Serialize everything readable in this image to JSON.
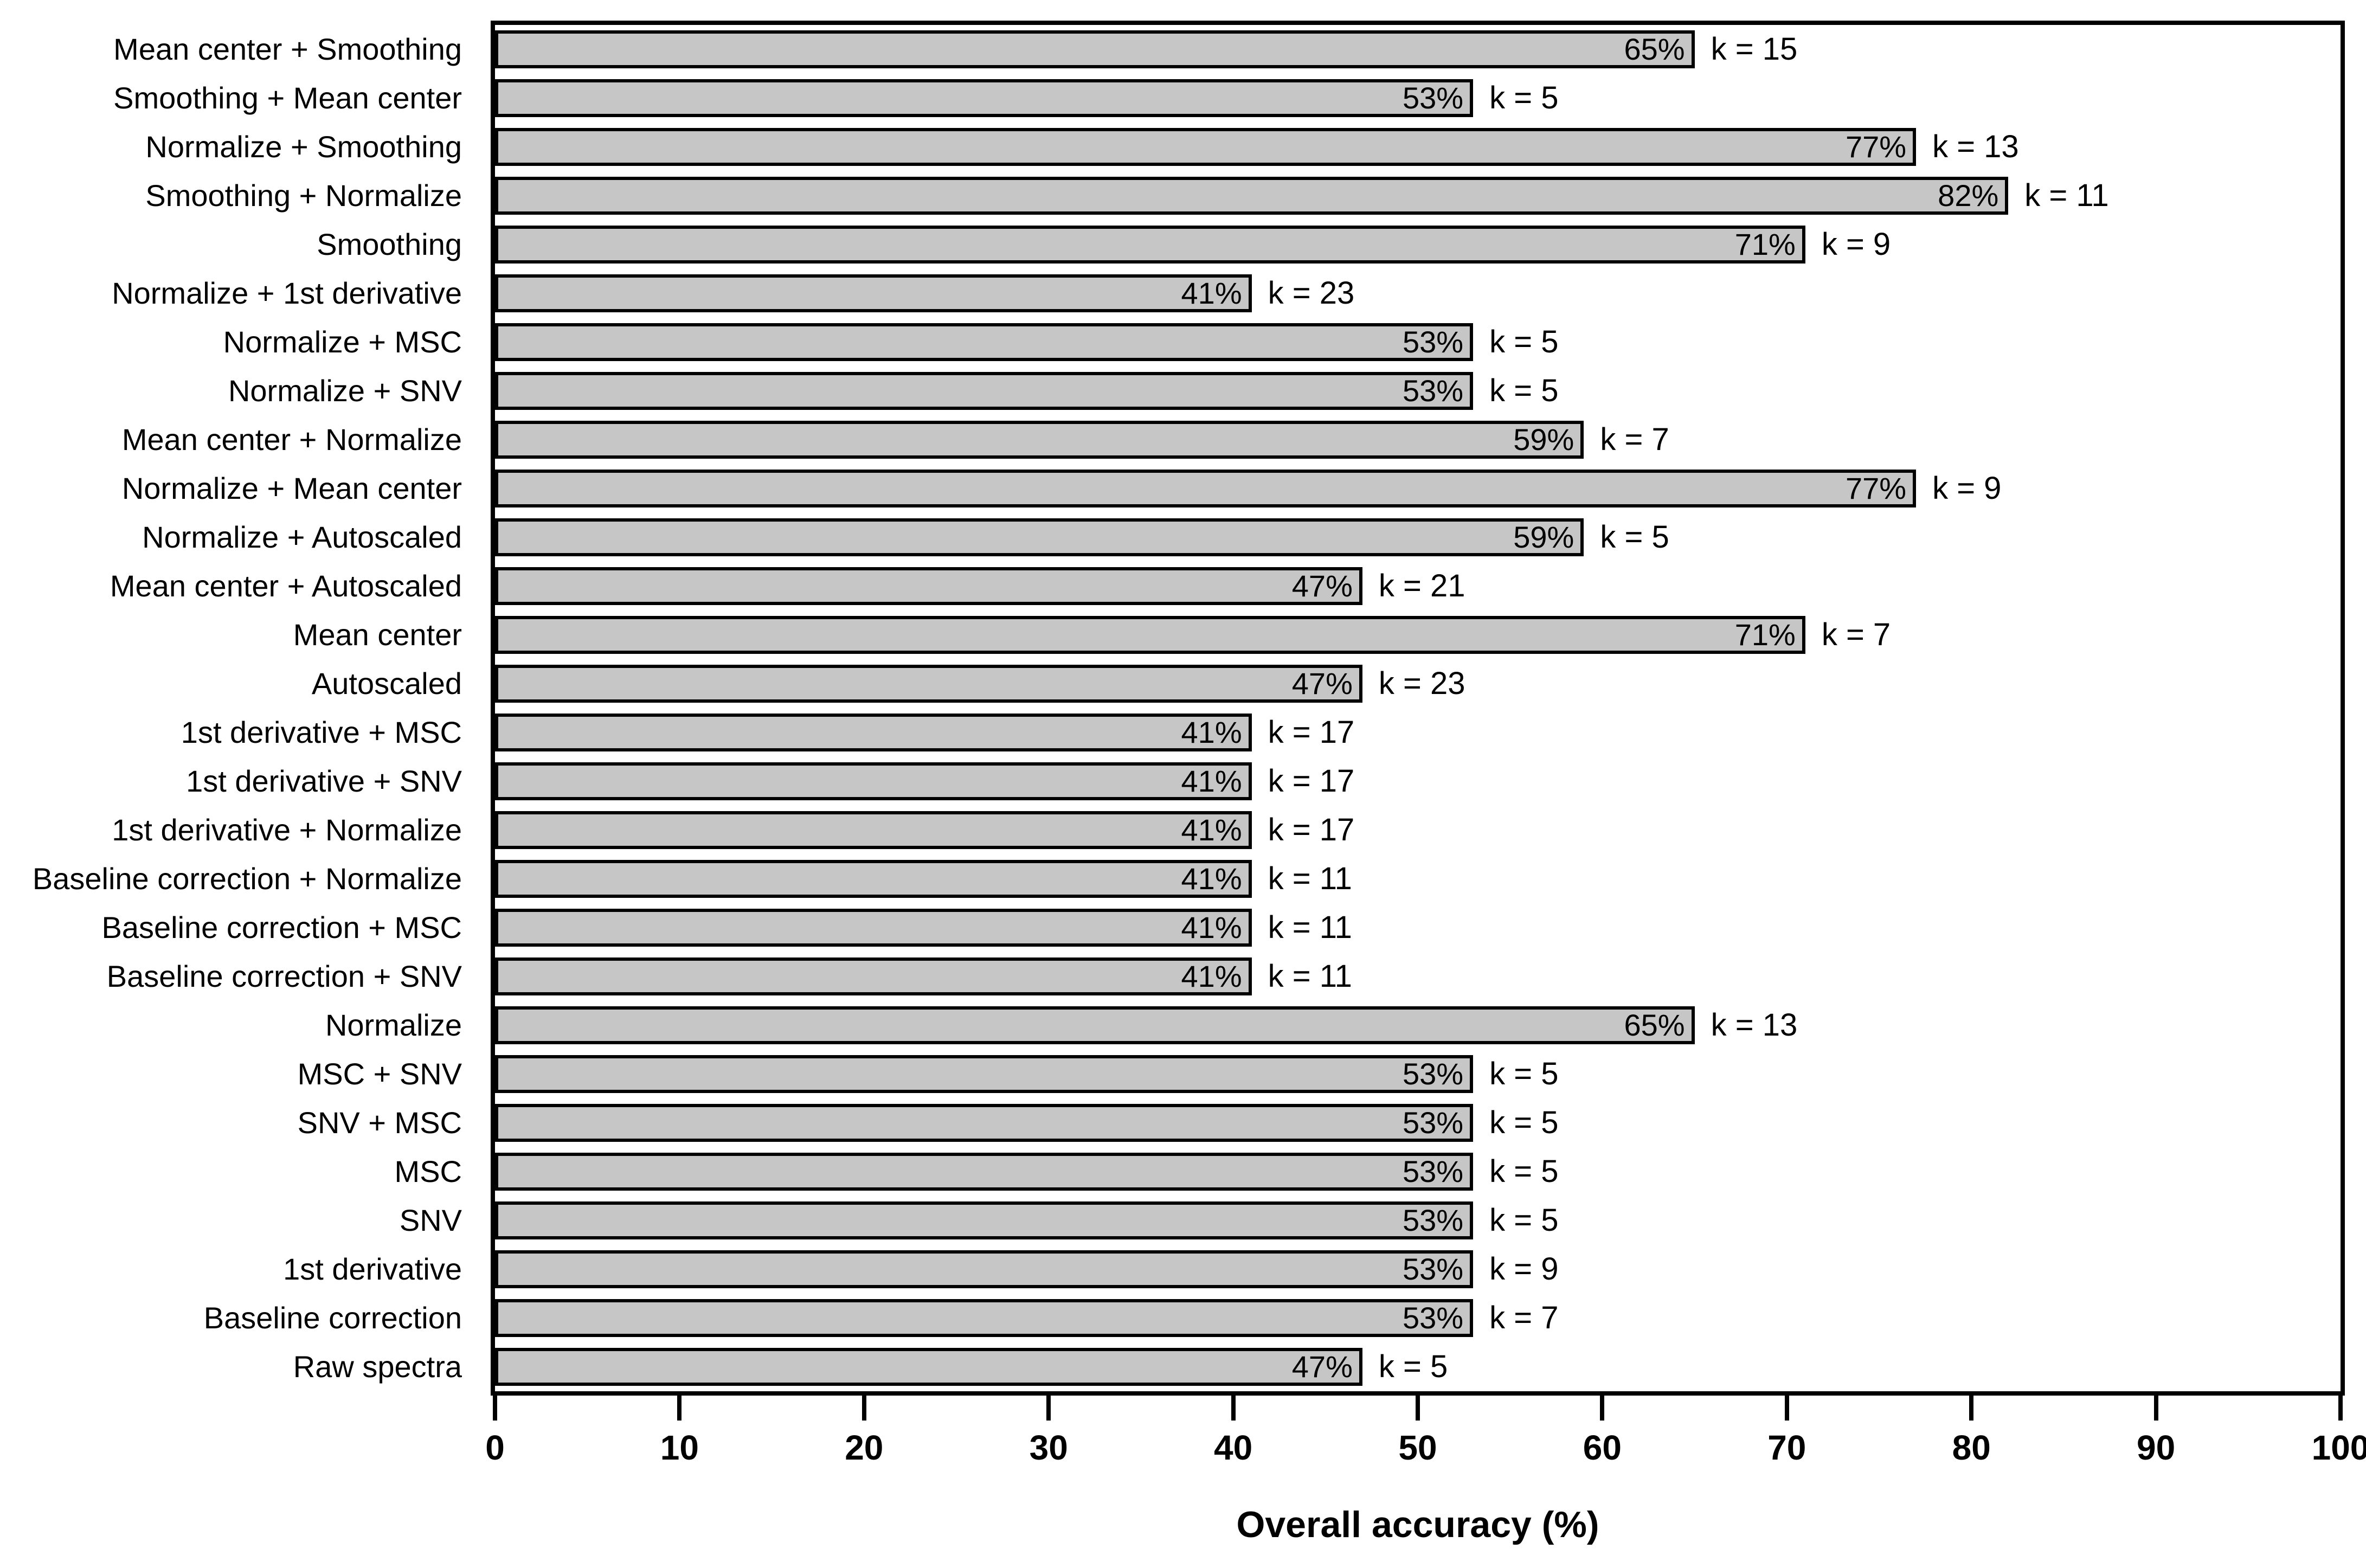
{
  "chart_data": {
    "type": "bar",
    "orientation": "horizontal",
    "title": "",
    "xlabel": "Overall accuracy (%)",
    "ylabel": "",
    "xlim": [
      0,
      100
    ],
    "xticks": [
      0,
      10,
      20,
      30,
      40,
      50,
      60,
      70,
      80,
      90,
      100
    ],
    "grid": false,
    "legend": "none",
    "bar_color": "#c6c6c6",
    "bar_border_color": "#000000",
    "rows": [
      {
        "category": "Mean center + Smoothing",
        "value": 65,
        "value_label": "65%",
        "k_label": "k = 15"
      },
      {
        "category": "Smoothing + Mean center",
        "value": 53,
        "value_label": "53%",
        "k_label": "k = 5"
      },
      {
        "category": "Normalize + Smoothing",
        "value": 77,
        "value_label": "77%",
        "k_label": "k = 13"
      },
      {
        "category": "Smoothing + Normalize",
        "value": 82,
        "value_label": "82%",
        "k_label": "k = 11"
      },
      {
        "category": "Smoothing",
        "value": 71,
        "value_label": "71%",
        "k_label": "k = 9"
      },
      {
        "category": "Normalize + 1st derivative",
        "value": 41,
        "value_label": "41%",
        "k_label": "k = 23"
      },
      {
        "category": "Normalize + MSC",
        "value": 53,
        "value_label": "53%",
        "k_label": "k = 5"
      },
      {
        "category": "Normalize + SNV",
        "value": 53,
        "value_label": "53%",
        "k_label": "k = 5"
      },
      {
        "category": "Mean center + Normalize",
        "value": 59,
        "value_label": "59%",
        "k_label": "k = 7"
      },
      {
        "category": "Normalize + Mean center",
        "value": 77,
        "value_label": "77%",
        "k_label": "k = 9"
      },
      {
        "category": "Normalize + Autoscaled",
        "value": 59,
        "value_label": "59%",
        "k_label": "k = 5"
      },
      {
        "category": "Mean center + Autoscaled",
        "value": 47,
        "value_label": "47%",
        "k_label": "k = 21"
      },
      {
        "category": "Mean center",
        "value": 71,
        "value_label": "71%",
        "k_label": "k = 7"
      },
      {
        "category": "Autoscaled",
        "value": 47,
        "value_label": "47%",
        "k_label": "k = 23"
      },
      {
        "category": "1st derivative + MSC",
        "value": 41,
        "value_label": "41%",
        "k_label": "k = 17"
      },
      {
        "category": "1st derivative + SNV",
        "value": 41,
        "value_label": "41%",
        "k_label": "k = 17"
      },
      {
        "category": "1st derivative + Normalize",
        "value": 41,
        "value_label": "41%",
        "k_label": "k = 17"
      },
      {
        "category": "Baseline correction + Normalize",
        "value": 41,
        "value_label": "41%",
        "k_label": "k = 11"
      },
      {
        "category": "Baseline correction + MSC",
        "value": 41,
        "value_label": "41%",
        "k_label": "k = 11"
      },
      {
        "category": "Baseline correction + SNV",
        "value": 41,
        "value_label": "41%",
        "k_label": "k = 11"
      },
      {
        "category": "Normalize",
        "value": 65,
        "value_label": "65%",
        "k_label": "k = 13"
      },
      {
        "category": "MSC + SNV",
        "value": 53,
        "value_label": "53%",
        "k_label": "k = 5"
      },
      {
        "category": "SNV + MSC",
        "value": 53,
        "value_label": "53%",
        "k_label": "k = 5"
      },
      {
        "category": "MSC",
        "value": 53,
        "value_label": "53%",
        "k_label": "k = 5"
      },
      {
        "category": "SNV",
        "value": 53,
        "value_label": "53%",
        "k_label": "k = 5"
      },
      {
        "category": "1st derivative",
        "value": 53,
        "value_label": "53%",
        "k_label": "k = 9"
      },
      {
        "category": "Baseline correction",
        "value": 53,
        "value_label": "53%",
        "k_label": "k = 7"
      },
      {
        "category": "Raw spectra",
        "value": 47,
        "value_label": "47%",
        "k_label": "k = 5"
      }
    ]
  }
}
